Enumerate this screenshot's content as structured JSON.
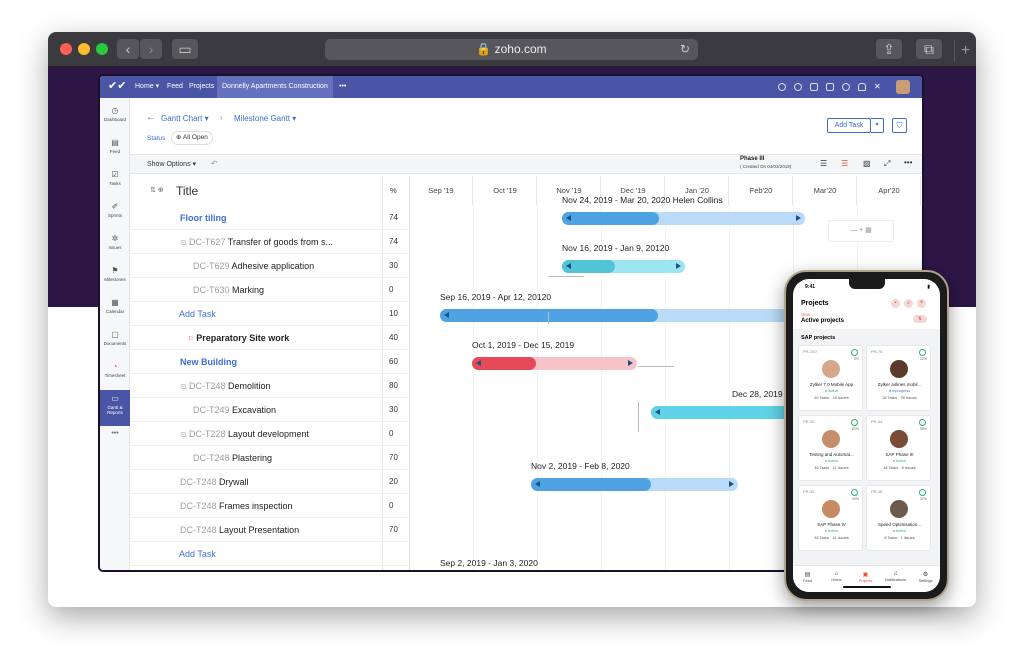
{
  "browser": {
    "url": "zoho.com"
  },
  "topnav": {
    "items": [
      "Home ▾",
      "Feed",
      "Projects",
      "Donnelly Apartments Construction",
      "•••"
    ]
  },
  "sidebar": {
    "items": [
      {
        "label": "Dashboard",
        "icon": "◷"
      },
      {
        "label": "Feed",
        "icon": "▤"
      },
      {
        "label": "Tasks",
        "icon": "☑"
      },
      {
        "label": "Sprints",
        "icon": "✐"
      },
      {
        "label": "Issues",
        "icon": "✲"
      },
      {
        "label": "Milestones",
        "icon": "⚑"
      },
      {
        "label": "Calendar",
        "icon": "▦"
      },
      {
        "label": "Documents",
        "icon": "▢"
      },
      {
        "label": "Timesheet",
        "icon": "◔"
      },
      {
        "label": "Gantt & Reports",
        "icon": "▭"
      }
    ],
    "more": "•••"
  },
  "header": {
    "gantt": "Gantt Chart ▾",
    "milestone": "Milestone Gantt ▾",
    "status_label": "Status",
    "status_value": "All Open",
    "add_task": "Add Task"
  },
  "toolbar": {
    "show_options": "Show Options ▾",
    "phase": "Phase III",
    "created": "( Created On 04/03/2019)"
  },
  "table": {
    "title": "Title",
    "percent_header": "%",
    "months": [
      "Sep '19",
      "Oct '19",
      "Nov '19",
      "Dec '19",
      "Jan '20",
      "Feb'20",
      "Mar'20",
      "Apr'20"
    ],
    "rows": [
      {
        "id": "",
        "name": "Floor tiling",
        "pct": "74",
        "style": "group"
      },
      {
        "id": "DC-T627",
        "name": "Transfer of goods from s...",
        "pct": "74",
        "style": "sub"
      },
      {
        "id": "DC-T629",
        "name": "Adhesive application",
        "pct": "30",
        "style": "subsub"
      },
      {
        "id": "DC-T630",
        "name": "Marking",
        "pct": "0",
        "style": "subsub"
      },
      {
        "id": "",
        "name": "Add Task",
        "pct": "10",
        "style": "add"
      },
      {
        "id": "",
        "name": "Preparatory Site work",
        "pct": "40",
        "style": "bold"
      },
      {
        "id": "",
        "name": "New Building",
        "pct": "60",
        "style": "group"
      },
      {
        "id": "DC-T248",
        "name": "Demolition",
        "pct": "80",
        "style": "sub"
      },
      {
        "id": "DC-T249",
        "name": "Excavation",
        "pct": "30",
        "style": "subsub"
      },
      {
        "id": "DC-T228",
        "name": "Layout development",
        "pct": "0",
        "style": "sub"
      },
      {
        "id": "DC-T248",
        "name": "Plastering",
        "pct": "70",
        "style": "subsub"
      },
      {
        "id": "DC-T248",
        "name": "Drywall",
        "pct": "20",
        "style": "plain"
      },
      {
        "id": "DC-T248",
        "name": "Frames inspection",
        "pct": "0",
        "style": "plain"
      },
      {
        "id": "DC-T248",
        "name": "Layout Presentation",
        "pct": "70",
        "style": "plain"
      },
      {
        "id": "",
        "name": "Add Task",
        "pct": "",
        "style": "add"
      }
    ]
  },
  "gantt": {
    "labels": [
      "Nov 24, 2019 - Mar 20, 2020 Helen Collins",
      "Nov 16, 2019 - Jan 9, 20120",
      "Sep 16, 2019 - Apr 12, 20120",
      "Oct 1, 2019 - Dec 15, 2019",
      "Dec 28, 2019",
      "Nov 2, 2019 - Feb 8, 2020",
      "Sep 2, 2019 - Jan 3, 2020"
    ]
  },
  "phone": {
    "time": "9:41",
    "title": "Projects",
    "view": "VIEW",
    "view_value": "Active projects",
    "section": "SAP projects",
    "cards": [
      {
        "id": "PR-200",
        "pct": "0%",
        "title": "Zylker 7.0 Mobile App",
        "status": "● Active",
        "counts": "45 Tasks · 18 Issues"
      },
      {
        "id": "PR-78",
        "pct": "22%",
        "title": "Zylker airlines mobil...",
        "status": "● Inprogress",
        "counts": "28 Tasks · 35 Issues"
      },
      {
        "id": "PR-20",
        "pct": "62%",
        "title": "Testing and Automat...",
        "status": "● Active",
        "counts": "45 Tasks · 11 Issues"
      },
      {
        "id": "PR-34",
        "pct": "99%",
        "title": "SAP Phase III",
        "status": "● Active",
        "counts": "48 Tasks · 8 Issues"
      },
      {
        "id": "PR-32",
        "pct": "93%",
        "title": "SAP Phase IV",
        "status": "● Active",
        "counts": "48 Tasks · 41 Issues"
      },
      {
        "id": "PR-18",
        "pct": "37%",
        "title": "Speed Optimisation...",
        "status": "● Active",
        "counts": "8 Tasks · 1 Issues"
      }
    ],
    "tabs": [
      "Feed",
      "Home",
      "Projects",
      "Notifications",
      "Settings"
    ]
  }
}
